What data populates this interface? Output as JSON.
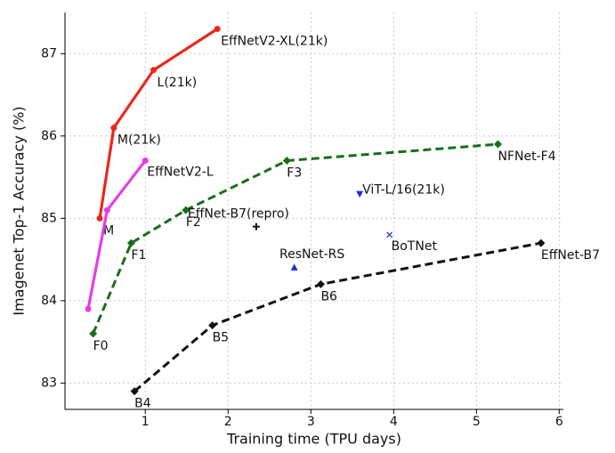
{
  "chart_data": {
    "type": "line",
    "xlabel": "Training time (TPU days)",
    "ylabel": "Imagenet Top-1 Accuracy (%)",
    "xlim": [
      0.03,
      6.05
    ],
    "ylim": [
      82.68,
      87.5
    ],
    "xticks": [
      1,
      2,
      3,
      4,
      5,
      6
    ],
    "yticks": [
      83,
      84,
      85,
      86,
      87
    ],
    "grid": true,
    "series": [
      {
        "color": "#e8291c",
        "marker": "circle",
        "line": "solid",
        "x": [
          0.45,
          0.62,
          1.1,
          1.87
        ],
        "values": [
          85.0,
          86.1,
          86.8,
          87.3
        ],
        "labels": [
          "M",
          "M(21k)",
          "L(21k)",
          "EffNetV2-XL(21k)"
        ]
      },
      {
        "color": "#e63de6",
        "marker": "circle",
        "line": "solid",
        "x": [
          0.31,
          0.54,
          1.0
        ],
        "values": [
          83.9,
          85.1,
          85.7
        ],
        "labels": [
          null,
          null,
          "EffNetV2-L"
        ]
      },
      {
        "color": "#1d6b1d",
        "marker": "diamond",
        "line": "dashed",
        "x": [
          0.37,
          0.83,
          1.49,
          2.71,
          5.26
        ],
        "values": [
          83.6,
          84.7,
          85.1,
          85.7,
          85.9
        ],
        "labels": [
          "F0",
          "F1",
          "F2",
          "F3",
          "NFNet-F4"
        ]
      },
      {
        "color": "#111111",
        "marker": "diamond",
        "line": "dashed",
        "x": [
          0.87,
          1.81,
          3.12,
          5.78
        ],
        "values": [
          82.9,
          83.7,
          84.2,
          84.7
        ],
        "labels": [
          "B4",
          "B5",
          "B6",
          "EffNet-B7"
        ]
      },
      {
        "color": "#111111",
        "marker": "plus",
        "line": "none",
        "x": [
          2.34
        ],
        "values": [
          84.9
        ],
        "labels": [
          "EffNet-B7(repro)"
        ]
      },
      {
        "color": "#1f2fd6",
        "marker": "triangle-up",
        "line": "none",
        "x": [
          2.8
        ],
        "values": [
          84.4
        ],
        "labels": [
          "ResNet-RS"
        ]
      },
      {
        "color": "#1f2fd6",
        "marker": "triangle-down",
        "line": "none",
        "x": [
          3.59
        ],
        "values": [
          85.3
        ],
        "labels": [
          "ViT-L/16(21k)"
        ]
      },
      {
        "color": "#1f2fd6",
        "marker": "x",
        "line": "none",
        "x": [
          3.95
        ],
        "values": [
          84.8
        ],
        "labels": [
          "BoTNet"
        ]
      }
    ]
  }
}
